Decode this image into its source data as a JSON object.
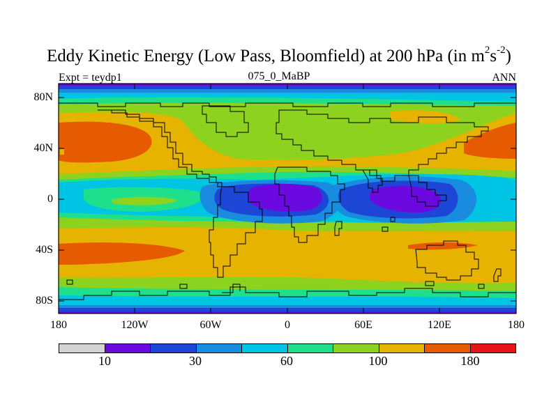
{
  "header": {
    "title_main": "Eddy Kinetic Energy (Low Pass, Bloomfield) at 200 hPa (in m",
    "title_sup1": "2",
    "title_mid": "s",
    "title_sup2": "-2",
    "title_end": ")",
    "left": "Expt = teydp1",
    "center": "075_0_MaBP",
    "right": "ANN"
  },
  "axes": {
    "y_ticks": [
      "80N",
      "40N",
      "0",
      "40S",
      "80S"
    ],
    "x_ticks": [
      "180",
      "120W",
      "60W",
      "0",
      "60E",
      "120E",
      "180"
    ]
  },
  "colorbar": {
    "colors": [
      "#d3d3d3",
      "#6a0ae0",
      "#1e46d6",
      "#198ce0",
      "#00c4e4",
      "#1ee08c",
      "#8cd21e",
      "#e6b400",
      "#e65a00",
      "#e61414"
    ],
    "labels": [
      "10",
      "30",
      "60",
      "100",
      "180"
    ]
  },
  "field_colors": {
    "purple": "#6a0ae0",
    "blue": "#1e46d6",
    "mid_blue": "#198ce0",
    "cyan": "#00c4e4",
    "teal": "#1ee08c",
    "lime": "#8cd21e",
    "gold": "#e6b400",
    "orange": "#e65a00"
  }
}
